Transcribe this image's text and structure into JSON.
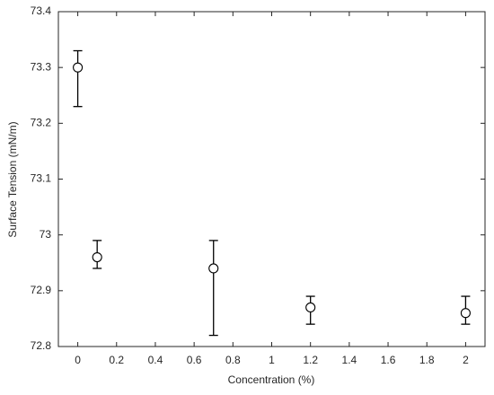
{
  "chart_data": {
    "type": "errorbar",
    "xlabel": "Concentration (%)",
    "ylabel": "Surface Tension (mN/m)",
    "x": [
      0,
      0.1,
      0.7,
      1.2,
      2
    ],
    "values": [
      73.3,
      72.96,
      72.94,
      72.87,
      72.86
    ],
    "lower": [
      73.23,
      72.94,
      72.82,
      72.84,
      72.84
    ],
    "upper": [
      73.33,
      72.99,
      72.99,
      72.89,
      72.89
    ],
    "color": "#000000",
    "xlim": [
      -0.1,
      2.1
    ],
    "xticks": [
      0,
      0.2,
      0.4,
      0.6,
      0.8,
      1,
      1.2,
      1.4,
      1.6,
      1.8,
      2
    ],
    "ylim": [
      72.8,
      73.4
    ],
    "yticks": [
      72.8,
      72.9,
      73,
      73.1,
      73.2,
      73.3,
      73.4
    ],
    "grid": false
  }
}
